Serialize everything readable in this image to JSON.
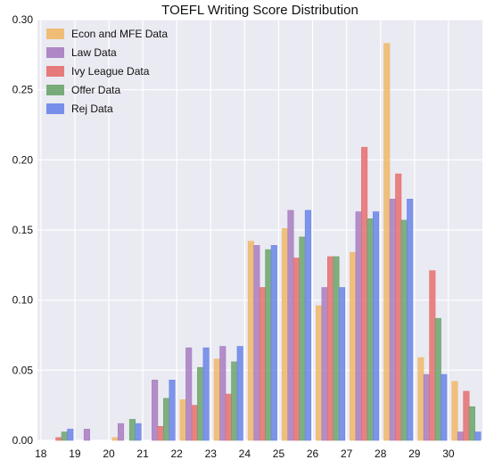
{
  "chart_data": {
    "type": "bar",
    "title": "TOEFL Writing Score Distribution",
    "xlabel": "",
    "ylabel": "",
    "categories": [
      "18",
      "19",
      "20",
      "21",
      "22",
      "23",
      "24",
      "25",
      "26",
      "27",
      "28",
      "29",
      "30"
    ],
    "x": [
      18,
      19,
      20,
      21,
      22,
      23,
      24,
      25,
      26,
      27,
      28,
      29,
      30
    ],
    "xlim": [
      17.9,
      31.0
    ],
    "ylim": [
      0,
      0.3
    ],
    "yticks": [
      "0.00",
      "0.05",
      "0.10",
      "0.15",
      "0.20",
      "0.25",
      "0.30"
    ],
    "grid": true,
    "legend_position": "top-left",
    "series": [
      {
        "name": "Econ and MFE Data",
        "color": "#f0b868",
        "values": [
          0.0,
          0.0,
          0.002,
          0.0,
          0.029,
          0.058,
          0.142,
          0.151,
          0.096,
          0.134,
          0.283,
          0.059,
          0.042
        ]
      },
      {
        "name": "Law Data",
        "color": "#a87cc0",
        "values": [
          0.0,
          0.008,
          0.012,
          0.043,
          0.066,
          0.067,
          0.139,
          0.164,
          0.109,
          0.163,
          0.172,
          0.047,
          0.006
        ]
      },
      {
        "name": "Ivy League Data",
        "color": "#e66e6e",
        "values": [
          0.002,
          0.0,
          0.0,
          0.01,
          0.025,
          0.033,
          0.109,
          0.13,
          0.131,
          0.209,
          0.19,
          0.121,
          0.035
        ]
      },
      {
        "name": "Offer Data",
        "color": "#6ba46b",
        "values": [
          0.006,
          0.0,
          0.015,
          0.03,
          0.052,
          0.056,
          0.136,
          0.145,
          0.131,
          0.158,
          0.157,
          0.087,
          0.024
        ]
      },
      {
        "name": "Rej Data",
        "color": "#6a85e8",
        "values": [
          0.008,
          0.0,
          0.012,
          0.043,
          0.066,
          0.067,
          0.139,
          0.164,
          0.109,
          0.163,
          0.172,
          0.047,
          0.006
        ]
      }
    ]
  }
}
